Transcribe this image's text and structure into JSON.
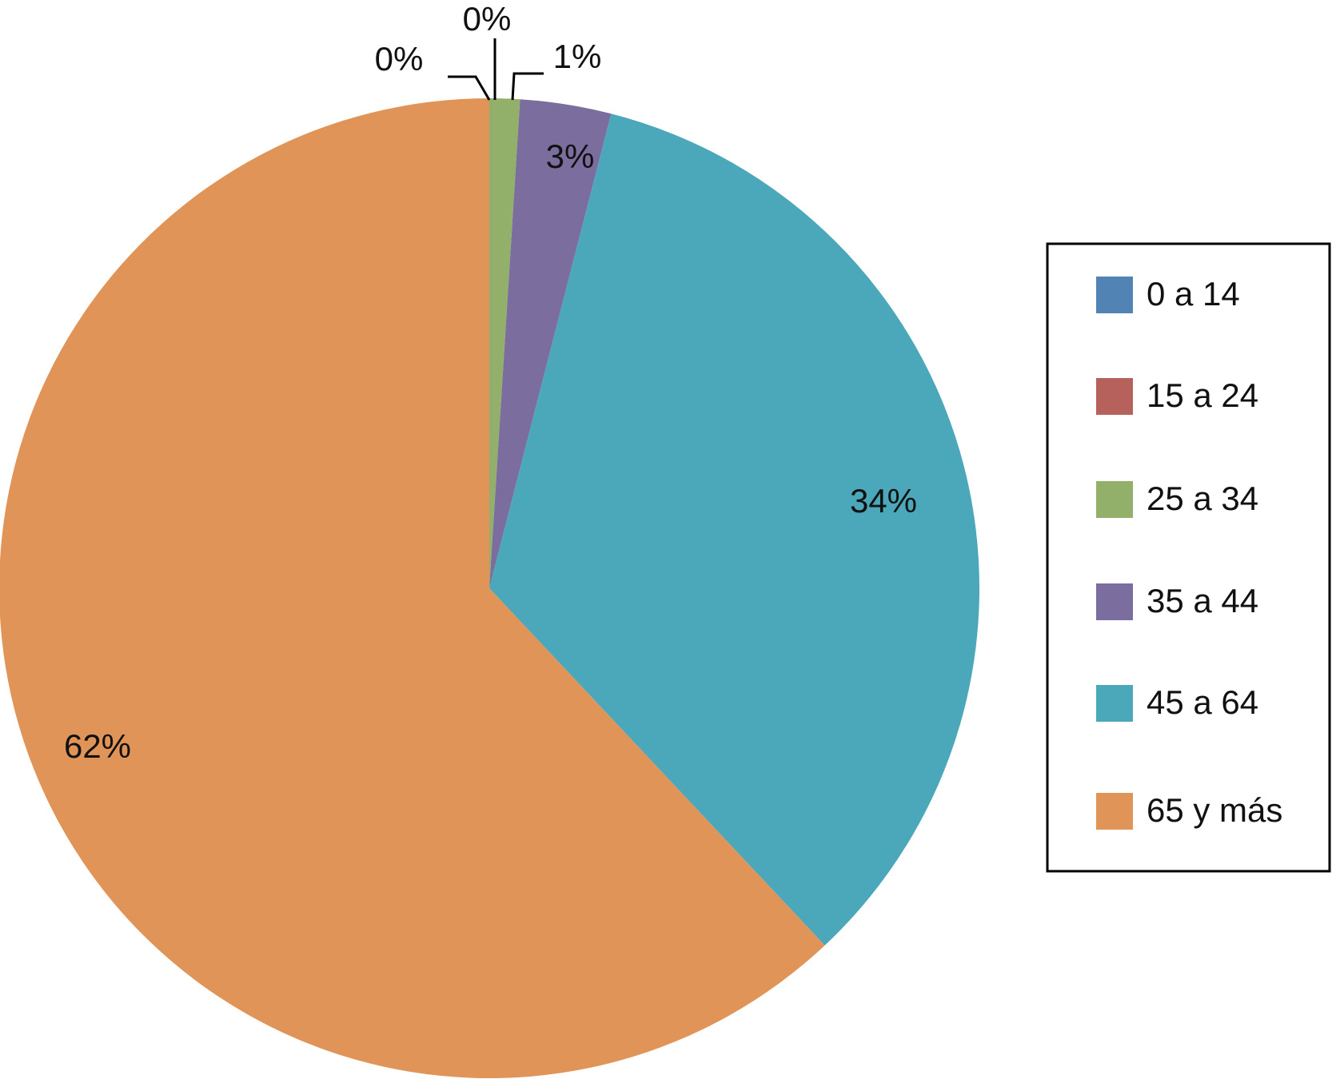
{
  "chart_data": {
    "type": "pie",
    "categories": [
      "0 a 14",
      "15 a 24",
      "25 a 34",
      "35 a 44",
      "45 a 64",
      "65 y más"
    ],
    "values": [
      0,
      0,
      1,
      3,
      34,
      62
    ],
    "value_labels": [
      "0%",
      "0%",
      "1%",
      "3%",
      "34%",
      "62%"
    ],
    "colors": [
      "#5183b4",
      "#b6615b",
      "#92b06a",
      "#7b6e9e",
      "#4aa8ba",
      "#e09457"
    ],
    "legend": "right"
  }
}
